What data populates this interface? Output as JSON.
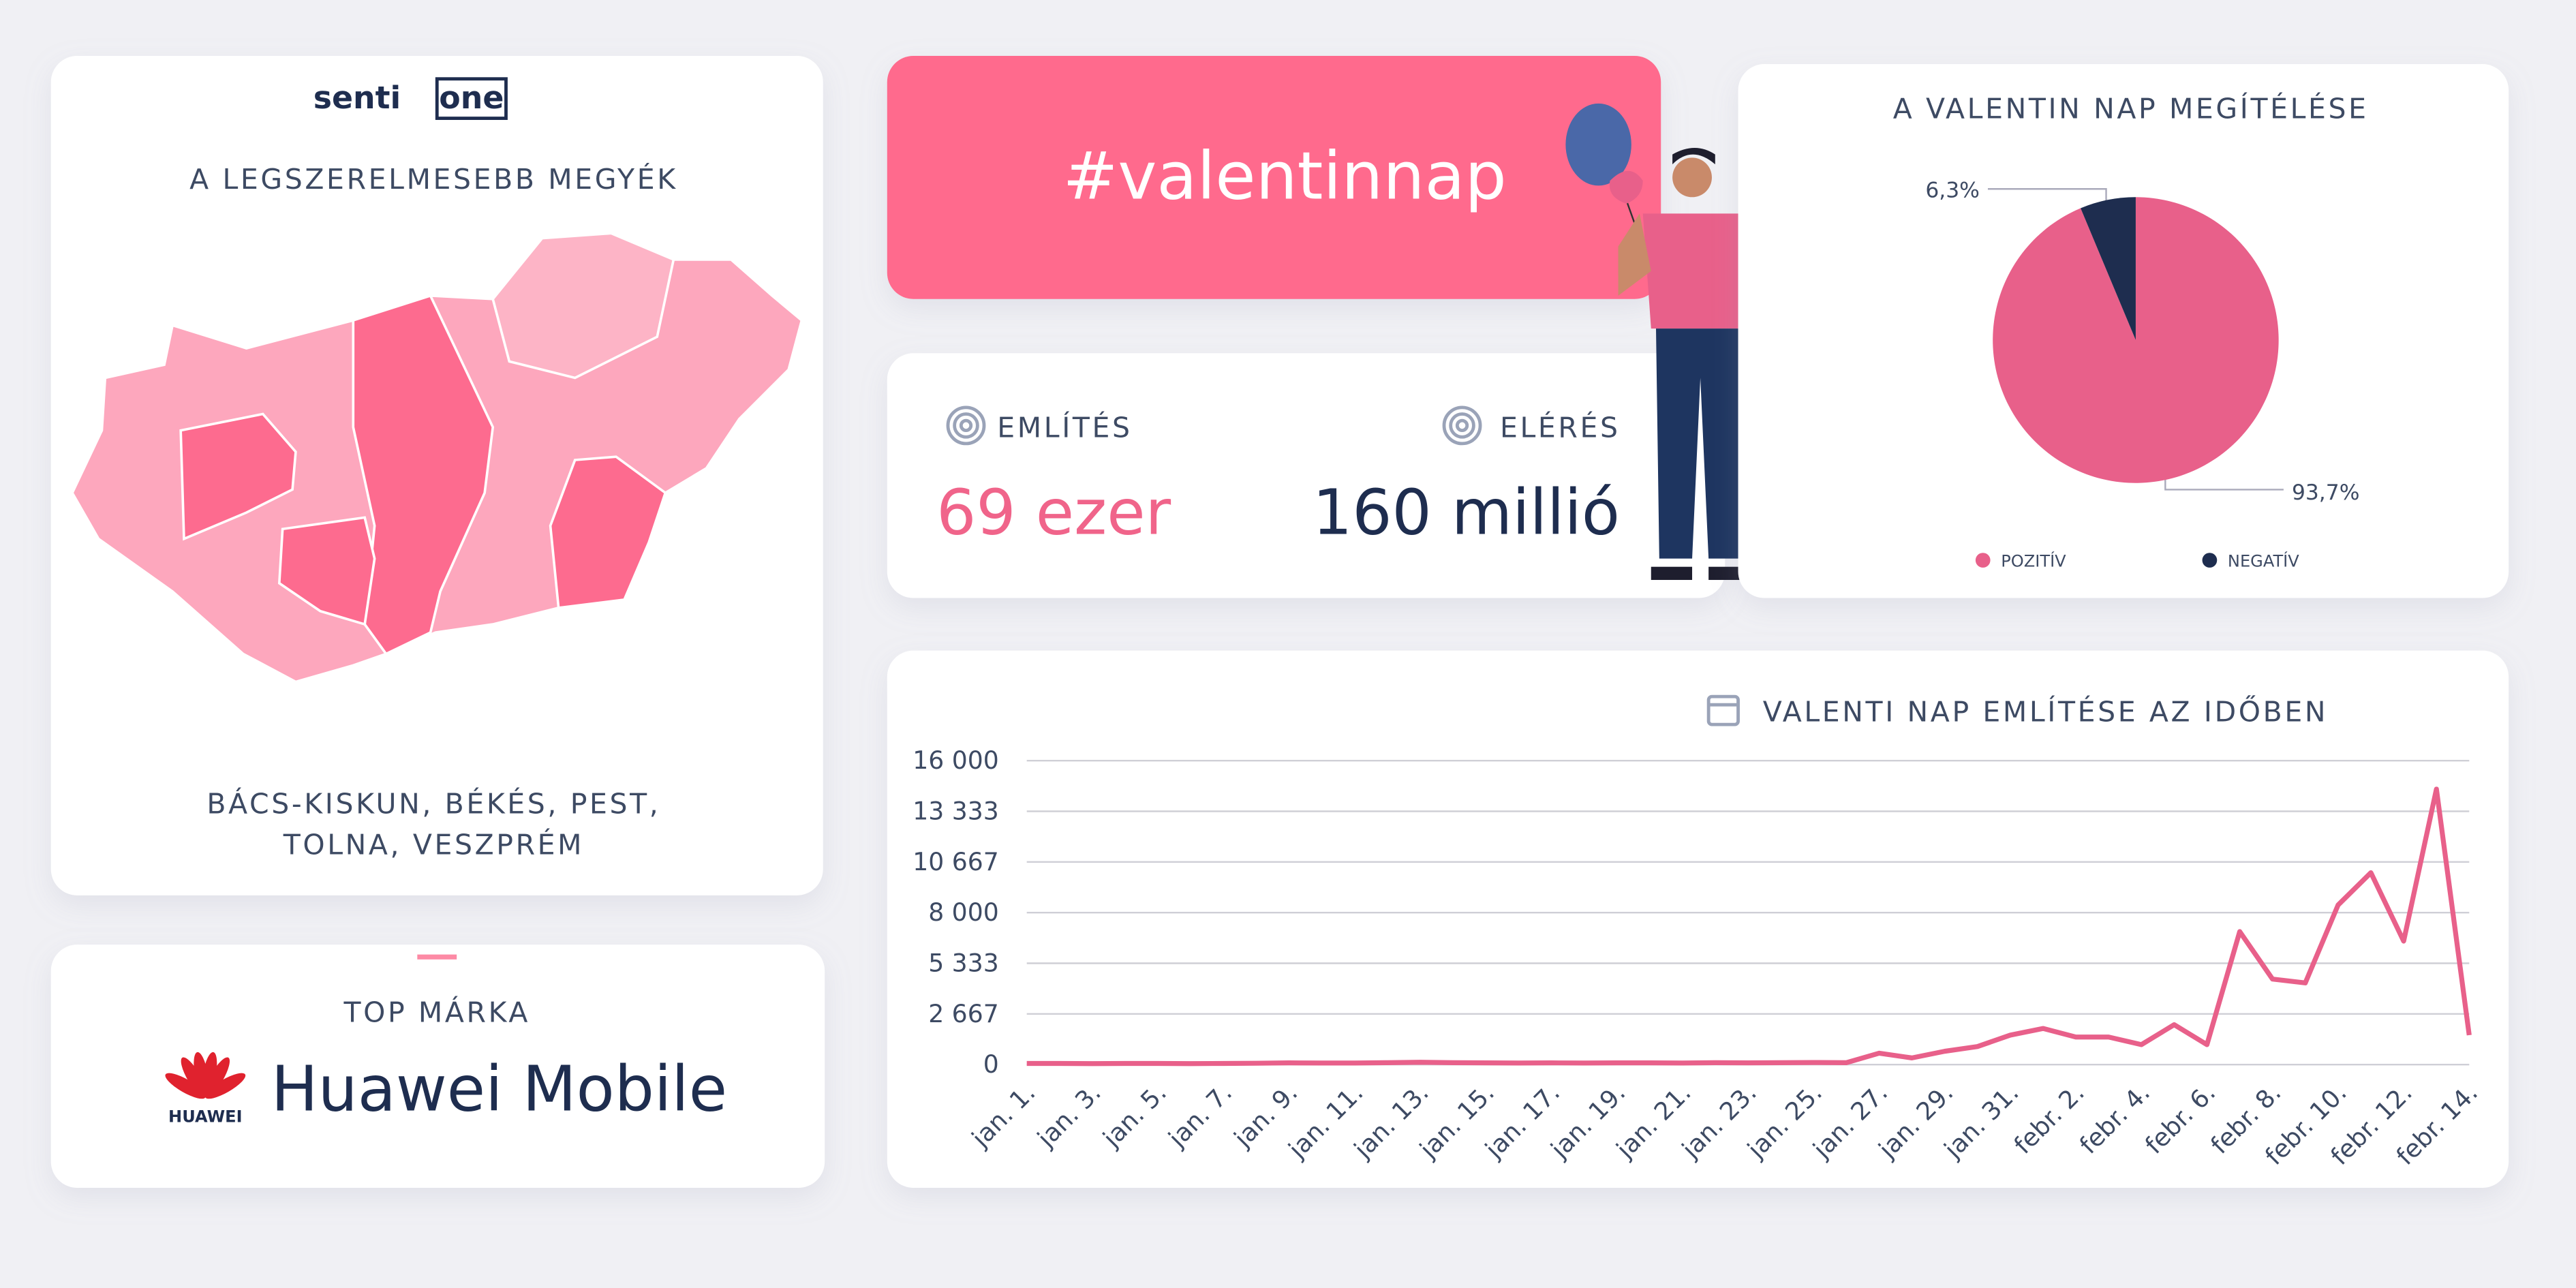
{
  "logo": {
    "part1": "senti",
    "part2": "one"
  },
  "map_card": {
    "title": "A LEGSZERELMESEBB MEGYÉK",
    "counties_line1": "BÁCS-KISKUN, BÉKÉS, PEST,",
    "counties_line2": "TOLNA, VESZPRÉM"
  },
  "top_brand": {
    "label": "TOP MÁRKA",
    "logo_text": "HUAWEI",
    "name": "Huawei Mobile"
  },
  "hashtag": "#valentinnap",
  "stats": [
    {
      "label": "EMLÍTÉS",
      "value": "69 ezer"
    },
    {
      "label": "ELÉRÉS",
      "value": "160 millió"
    }
  ],
  "chart_data": [
    {
      "type": "pie",
      "title": "A VALENTIN NAP MEGÍTÉLÉSE",
      "categories": [
        "POZITÍV",
        "NEGATÍV"
      ],
      "values": [
        93.7,
        6.3
      ],
      "value_labels": [
        "93,7%",
        "6,3%"
      ],
      "colors": [
        "#e8608a",
        "#1e2d4f"
      ]
    },
    {
      "type": "line",
      "title": "VALENTI NAP EMLÍTÉSE AZ IDŐBEN",
      "categories": [
        "jan. 1.",
        null,
        "jan. 3.",
        null,
        "jan. 5.",
        null,
        "jan. 7.",
        null,
        "jan. 9.",
        null,
        "jan. 11.",
        null,
        "jan. 13.",
        null,
        "jan. 15.",
        null,
        "jan. 17.",
        null,
        "jan. 19.",
        null,
        "jan. 21.",
        null,
        "jan. 23.",
        null,
        "jan. 25.",
        null,
        "jan. 27.",
        null,
        "jan. 29.",
        null,
        "jan. 31.",
        null,
        "febr. 2.",
        null,
        "febr. 4.",
        null,
        "febr. 6.",
        null,
        "febr. 8.",
        null,
        "febr. 10.",
        null,
        "febr. 12.",
        null,
        "febr. 14."
      ],
      "values": [
        60,
        60,
        50,
        60,
        60,
        50,
        60,
        70,
        90,
        80,
        80,
        100,
        120,
        100,
        90,
        80,
        90,
        80,
        90,
        90,
        80,
        100,
        90,
        100,
        110,
        100,
        600,
        350,
        700,
        950,
        1550,
        1900,
        1450,
        1450,
        1050,
        2100,
        1050,
        7000,
        4500,
        4300,
        8400,
        10100,
        6500,
        14500,
        1550
      ],
      "color": "#e8608a",
      "ylim": [
        0,
        16000
      ],
      "yticks": [
        0,
        {
          "value": 2667,
          "label": "2 667"
        },
        {
          "value": 5333,
          "label": "5 333"
        },
        {
          "value": 8000,
          "label": "8 000"
        },
        {
          "value": 10667,
          "label": "10 667"
        },
        {
          "value": 13333,
          "label": "13 333"
        },
        {
          "value": 16000,
          "label": "16 000"
        }
      ],
      "grid": true
    }
  ]
}
